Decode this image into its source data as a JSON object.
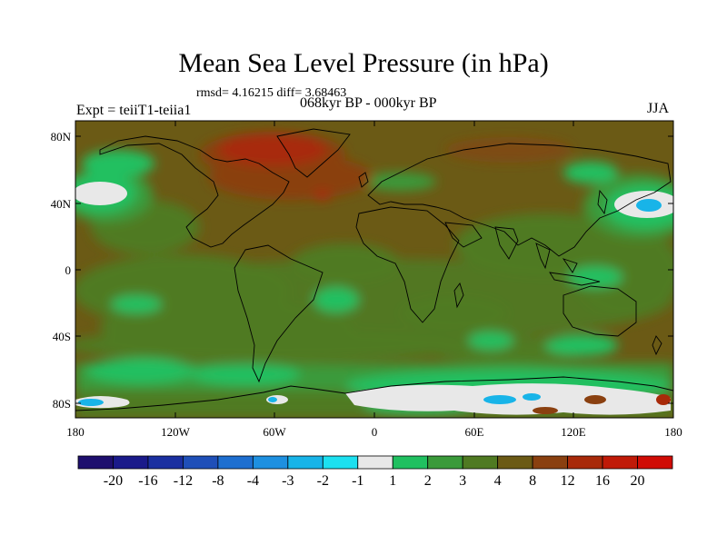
{
  "title": "Mean Sea Level Pressure (in hPa)",
  "stats_text": "rmsd= 4.16215 diff= 3.68463",
  "period_text": "068kyr BP - 000kyr BP",
  "experiment_text": "Expt = teiiT1-teiia1",
  "season_text": "JJA",
  "y_ticks": [
    "80N",
    "40N",
    "0",
    "40S",
    "80S"
  ],
  "x_ticks": [
    "180",
    "120W",
    "60W",
    "0",
    "60E",
    "120E",
    "180"
  ],
  "colorbar": {
    "labels": [
      "-20",
      "-16",
      "-12",
      "-8",
      "-4",
      "-3",
      "-2",
      "-1",
      "1",
      "2",
      "3",
      "4",
      "8",
      "12",
      "16",
      "20"
    ],
    "colors": [
      "#1e0f6e",
      "#1a1a8a",
      "#1a2fa0",
      "#1f4fb8",
      "#1e6fd0",
      "#1e90e0",
      "#18b4e8",
      "#1ce0f0",
      "#e8e8e8",
      "#20c060",
      "#3a9a3a",
      "#4f7a22",
      "#6b5a15",
      "#8a4010",
      "#a82a0a",
      "#c01a08",
      "#d00c05"
    ]
  },
  "chart_data": {
    "type": "heatmap",
    "title": "Mean Sea Level Pressure (in hPa)",
    "subtitle": "068kyr BP - 000kyr BP",
    "annotation": "rmsd= 4.16215 diff= 3.68463",
    "left_label": "Expt = teiiT1-teiia1",
    "right_label": "JJA",
    "x_range": [
      -180,
      180
    ],
    "y_range": [
      -90,
      90
    ],
    "contour_levels": [
      -20,
      -16,
      -12,
      -8,
      -4,
      -3,
      -2,
      -1,
      1,
      2,
      3,
      4,
      8,
      12,
      16,
      20
    ]
  }
}
